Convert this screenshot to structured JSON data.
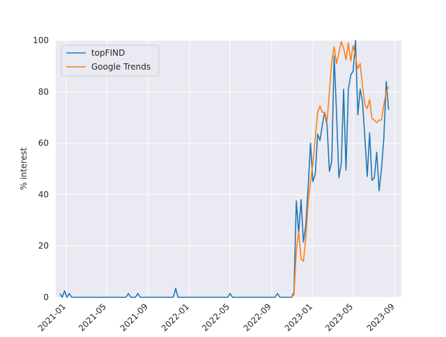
{
  "chart_data": {
    "type": "line",
    "title": "",
    "xlabel": "",
    "ylabel": "% interest",
    "ylim": [
      0,
      100
    ],
    "yticks": [
      0,
      20,
      40,
      60,
      80,
      100
    ],
    "xlim": [
      "2020-12-01",
      "2023-09-20"
    ],
    "xticks": [
      "2021-01",
      "2021-05",
      "2021-09",
      "2022-01",
      "2022-05",
      "2022-09",
      "2023-01",
      "2023-05",
      "2023-09"
    ],
    "grid": true,
    "legend_position": "upper-left",
    "background": "#eaeaf2",
    "series": [
      {
        "name": "topFIND",
        "color": "#1f77b4",
        "points": [
          [
            "2020-12-13",
            1.5
          ],
          [
            "2020-12-20",
            0
          ],
          [
            "2020-12-27",
            2.5
          ],
          [
            "2021-01-03",
            0
          ],
          [
            "2021-01-10",
            1.5
          ],
          [
            "2021-01-17",
            0
          ],
          [
            "2021-06-27",
            0
          ],
          [
            "2021-07-04",
            1.5
          ],
          [
            "2021-07-11",
            0
          ],
          [
            "2021-07-25",
            0
          ],
          [
            "2021-08-01",
            1.5
          ],
          [
            "2021-08-08",
            0
          ],
          [
            "2021-11-14",
            0
          ],
          [
            "2021-11-21",
            3.5
          ],
          [
            "2021-11-28",
            0
          ],
          [
            "2022-04-24",
            0
          ],
          [
            "2022-05-01",
            1.5
          ],
          [
            "2022-05-08",
            0
          ],
          [
            "2022-09-11",
            0
          ],
          [
            "2022-09-18",
            1.5
          ],
          [
            "2022-09-25",
            0
          ],
          [
            "2022-10-30",
            0
          ],
          [
            "2022-11-06",
            2
          ],
          [
            "2022-11-13",
            37.5
          ],
          [
            "2022-11-20",
            25
          ],
          [
            "2022-11-27",
            38
          ],
          [
            "2022-12-04",
            21.5
          ],
          [
            "2022-12-11",
            28
          ],
          [
            "2022-12-18",
            43
          ],
          [
            "2022-12-25",
            60
          ],
          [
            "2023-01-01",
            45
          ],
          [
            "2023-01-08",
            48
          ],
          [
            "2023-01-15",
            63.5
          ],
          [
            "2023-01-22",
            61
          ],
          [
            "2023-01-29",
            67
          ],
          [
            "2023-02-05",
            72
          ],
          [
            "2023-02-12",
            67
          ],
          [
            "2023-02-19",
            49
          ],
          [
            "2023-02-26",
            53
          ],
          [
            "2023-03-05",
            94
          ],
          [
            "2023-03-12",
            72
          ],
          [
            "2023-03-19",
            46.5
          ],
          [
            "2023-03-26",
            52
          ],
          [
            "2023-04-02",
            81
          ],
          [
            "2023-04-09",
            49.5
          ],
          [
            "2023-04-16",
            81
          ],
          [
            "2023-04-23",
            86.5
          ],
          [
            "2023-04-30",
            88
          ],
          [
            "2023-05-07",
            100
          ],
          [
            "2023-05-14",
            71
          ],
          [
            "2023-05-21",
            81
          ],
          [
            "2023-05-28",
            76
          ],
          [
            "2023-06-04",
            62
          ],
          [
            "2023-06-11",
            47
          ],
          [
            "2023-06-18",
            64
          ],
          [
            "2023-06-25",
            45.5
          ],
          [
            "2023-07-02",
            46.5
          ],
          [
            "2023-07-09",
            56.5
          ],
          [
            "2023-07-16",
            41.5
          ],
          [
            "2023-07-23",
            50
          ],
          [
            "2023-07-30",
            62
          ],
          [
            "2023-08-06",
            84
          ],
          [
            "2023-08-13",
            73
          ]
        ]
      },
      {
        "name": "Google Trends",
        "color": "#ff7f0e",
        "points": [
          [
            "2022-10-30",
            0
          ],
          [
            "2022-11-06",
            1
          ],
          [
            "2022-11-13",
            18
          ],
          [
            "2022-11-20",
            25.5
          ],
          [
            "2022-11-27",
            15
          ],
          [
            "2022-12-04",
            14
          ],
          [
            "2022-12-11",
            23
          ],
          [
            "2022-12-18",
            37
          ],
          [
            "2022-12-25",
            45
          ],
          [
            "2023-01-01",
            52
          ],
          [
            "2023-01-08",
            62
          ],
          [
            "2023-01-15",
            72
          ],
          [
            "2023-01-22",
            74.5
          ],
          [
            "2023-01-29",
            72
          ],
          [
            "2023-02-05",
            72
          ],
          [
            "2023-02-12",
            68.5
          ],
          [
            "2023-02-19",
            80
          ],
          [
            "2023-02-26",
            92
          ],
          [
            "2023-03-05",
            97.5
          ],
          [
            "2023-03-12",
            91
          ],
          [
            "2023-03-19",
            95
          ],
          [
            "2023-03-26",
            99.5
          ],
          [
            "2023-04-02",
            97
          ],
          [
            "2023-04-09",
            92.5
          ],
          [
            "2023-04-16",
            99
          ],
          [
            "2023-04-23",
            92
          ],
          [
            "2023-04-30",
            98
          ],
          [
            "2023-05-07",
            93.5
          ],
          [
            "2023-05-14",
            89
          ],
          [
            "2023-05-21",
            91
          ],
          [
            "2023-05-28",
            82
          ],
          [
            "2023-06-04",
            75
          ],
          [
            "2023-06-11",
            73.5
          ],
          [
            "2023-06-18",
            77
          ],
          [
            "2023-06-25",
            69.5
          ],
          [
            "2023-07-02",
            69
          ],
          [
            "2023-07-09",
            68
          ],
          [
            "2023-07-16",
            69
          ],
          [
            "2023-07-23",
            69
          ],
          [
            "2023-07-30",
            75
          ],
          [
            "2023-08-06",
            80
          ],
          [
            "2023-08-13",
            82
          ]
        ]
      }
    ]
  }
}
